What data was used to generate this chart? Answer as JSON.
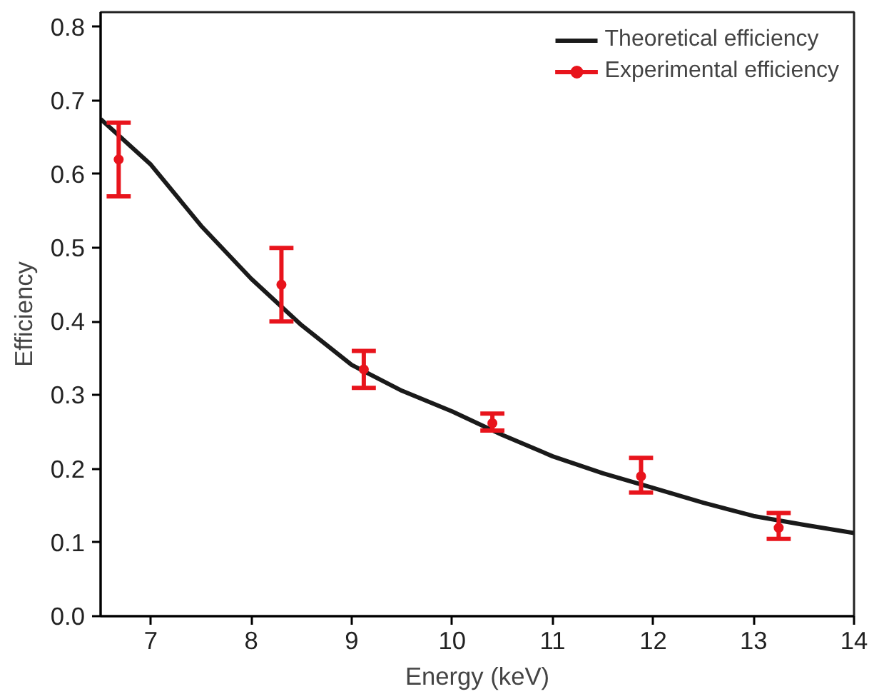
{
  "chart_data": {
    "type": "line",
    "xlabel": "Energy (keV)",
    "ylabel": "Efficiency",
    "xlim": [
      6.5,
      14
    ],
    "xticks": [
      7,
      8,
      9,
      10,
      11,
      12,
      13,
      14
    ],
    "ylim": [
      0,
      0.82
    ],
    "yticks": [
      {
        "value": 0,
        "label": "0.0"
      },
      0.1,
      0.2,
      0.3,
      0.4,
      0.5,
      0.6,
      0.7,
      0.8
    ],
    "grid": false,
    "legend": "top right",
    "series": [
      {
        "name": "Theoretical efficiency",
        "color": "#1a1a1a",
        "line_style": "solid",
        "marker": "none",
        "x": [
          6.5,
          7,
          7.5,
          8,
          8.5,
          9,
          9.5,
          10,
          10.5,
          11,
          11.5,
          12,
          12.5,
          13,
          13.5,
          14
        ],
        "values": [
          0.675,
          0.613,
          0.53,
          0.458,
          0.395,
          0.341,
          0.306,
          0.278,
          0.246,
          0.217,
          0.194,
          0.174,
          0.154,
          0.136,
          0.124,
          0.113
        ]
      },
      {
        "name": "Experimental efficiency",
        "type": "scatter",
        "color": "#e8141c",
        "marker": "circle",
        "x": [
          6.68,
          8.3,
          9.12,
          10.4,
          11.88,
          13.25
        ],
        "values": [
          0.62,
          0.45,
          0.335,
          0.262,
          0.19,
          0.12
        ],
        "errors": [
          [
            0.57,
            0.67
          ],
          [
            0.4,
            0.5
          ],
          [
            0.31,
            0.36
          ],
          [
            0.252,
            0.275
          ],
          [
            0.168,
            0.215
          ],
          [
            0.105,
            0.14
          ]
        ]
      }
    ]
  }
}
